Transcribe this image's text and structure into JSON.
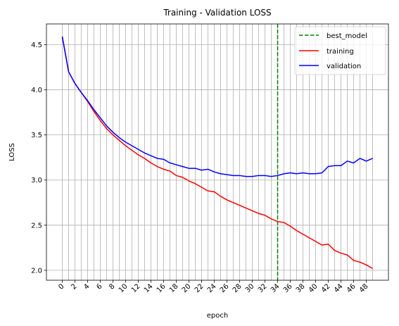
{
  "chart_data": {
    "type": "line",
    "title": "Training - Validation LOSS",
    "xlabel": "epoch",
    "ylabel": "LOSS",
    "xlim": [
      -2.5,
      51.5
    ],
    "ylim": [
      1.89,
      4.73
    ],
    "grid": true,
    "legend_position": "top-right",
    "x_ticks": [
      0,
      2,
      4,
      6,
      8,
      10,
      12,
      14,
      16,
      18,
      20,
      22,
      24,
      26,
      28,
      30,
      32,
      34,
      36,
      38,
      40,
      42,
      44,
      46,
      48
    ],
    "x_gridlines": [
      0,
      1,
      2,
      3,
      4,
      5,
      6,
      7,
      8,
      9,
      10,
      11,
      12,
      13,
      14,
      15,
      16,
      17,
      18,
      19,
      20,
      21,
      22,
      23,
      24,
      25,
      26,
      27,
      28,
      29,
      30,
      31,
      32,
      33,
      34,
      35,
      36,
      37,
      38,
      39,
      40,
      41,
      42,
      43,
      44,
      45,
      46,
      47,
      48,
      49
    ],
    "y_ticks": [
      2.0,
      2.5,
      3.0,
      3.5,
      4.0,
      4.5
    ],
    "y_tick_labels": [
      "2.0",
      "2.5",
      "3.0",
      "3.5",
      "4.0",
      "4.5"
    ],
    "best_epoch": 34,
    "x": [
      0,
      1,
      2,
      3,
      4,
      5,
      6,
      7,
      8,
      9,
      10,
      11,
      12,
      13,
      14,
      15,
      16,
      17,
      18,
      19,
      20,
      21,
      22,
      23,
      24,
      25,
      26,
      27,
      28,
      29,
      30,
      31,
      32,
      33,
      34,
      35,
      36,
      37,
      38,
      39,
      40,
      41,
      42,
      43,
      44,
      45,
      46,
      47,
      48,
      49
    ],
    "series": [
      {
        "name": "best_model",
        "style": "dashed-vertical",
        "color": "#008000",
        "x": 34
      },
      {
        "name": "training",
        "color": "#ff0000",
        "values": [
          4.59,
          4.2,
          4.07,
          3.97,
          3.87,
          3.76,
          3.66,
          3.57,
          3.5,
          3.44,
          3.38,
          3.33,
          3.28,
          3.24,
          3.19,
          3.15,
          3.12,
          3.1,
          3.05,
          3.03,
          2.99,
          2.96,
          2.92,
          2.88,
          2.87,
          2.82,
          2.78,
          2.75,
          2.72,
          2.69,
          2.66,
          2.63,
          2.61,
          2.57,
          2.54,
          2.53,
          2.49,
          2.44,
          2.4,
          2.36,
          2.32,
          2.28,
          2.29,
          2.22,
          2.19,
          2.17,
          2.11,
          2.09,
          2.06,
          2.02
        ]
      },
      {
        "name": "validation",
        "color": "#0000ff",
        "values": [
          4.59,
          4.2,
          4.07,
          3.97,
          3.88,
          3.78,
          3.69,
          3.6,
          3.53,
          3.47,
          3.42,
          3.38,
          3.34,
          3.3,
          3.27,
          3.24,
          3.23,
          3.19,
          3.17,
          3.15,
          3.13,
          3.13,
          3.11,
          3.12,
          3.09,
          3.07,
          3.06,
          3.05,
          3.05,
          3.04,
          3.04,
          3.05,
          3.05,
          3.04,
          3.05,
          3.07,
          3.08,
          3.07,
          3.08,
          3.07,
          3.07,
          3.08,
          3.15,
          3.16,
          3.16,
          3.21,
          3.19,
          3.24,
          3.21,
          3.24
        ]
      }
    ]
  }
}
